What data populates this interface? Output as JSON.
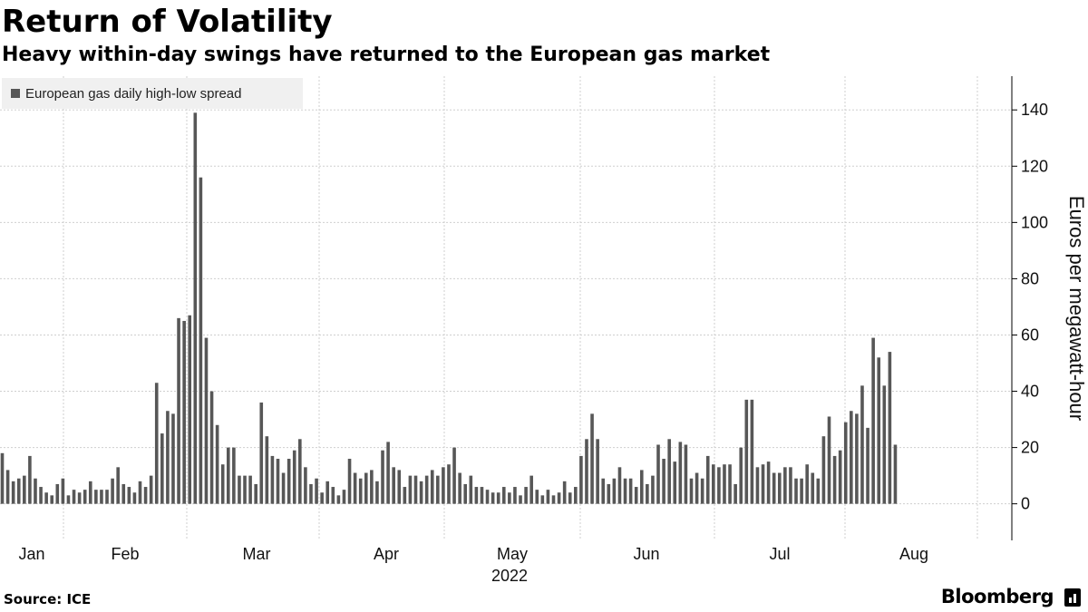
{
  "header": {
    "title": "Return of Volatility",
    "subtitle": "Heavy within-day swings have returned to the European gas market"
  },
  "footer": {
    "source": "Source: ICE",
    "brand": "Bloomberg"
  },
  "icons": {
    "brand_mark": "bloomberg-terminal-icon"
  },
  "colors": {
    "bar": "#575757",
    "grid": "#cfcfcf",
    "legend_bg": "#f0f0f0"
  },
  "chart_data": {
    "type": "bar",
    "legend": [
      "European gas daily high-low spread"
    ],
    "legend_position": "top-left",
    "ylabel": "Euros per megawatt-hour",
    "y_axis_side": "right",
    "ylim": [
      -13,
      152
    ],
    "yticks": [
      0,
      20,
      40,
      60,
      80,
      100,
      120,
      140
    ],
    "grid": true,
    "x_tick_labels": [
      "Jan",
      "Feb",
      "Mar",
      "Apr",
      "May",
      "Jun",
      "Jul",
      "Aug"
    ],
    "x_period_label": "2022",
    "series": [
      {
        "values": [
          18,
          12,
          8,
          9,
          10,
          17,
          9,
          6,
          4,
          3,
          7,
          9,
          3,
          5,
          4,
          5,
          8,
          5,
          5,
          5,
          9,
          13,
          7,
          6,
          4,
          8,
          6,
          10,
          43,
          25,
          33,
          32,
          66,
          65,
          67,
          139,
          116,
          59,
          40,
          28,
          14,
          20,
          20,
          10,
          10,
          10,
          7,
          36,
          24,
          17,
          16,
          11,
          16,
          19,
          23,
          13,
          7,
          9,
          4,
          8,
          6,
          3,
          5,
          16,
          11,
          9,
          11,
          12,
          8,
          19,
          22,
          13,
          12,
          6,
          10,
          10,
          8,
          10,
          12,
          10,
          13,
          14,
          20,
          11,
          7,
          10,
          6,
          6,
          5,
          4,
          4,
          6,
          4,
          6,
          3,
          6,
          10,
          5,
          3,
          5,
          3,
          4,
          8,
          4,
          6,
          17,
          23,
          32,
          23,
          9,
          7,
          9,
          13,
          9,
          9,
          6,
          12,
          7,
          10,
          21,
          16,
          23,
          15,
          22,
          21,
          9,
          11,
          9,
          17,
          14,
          13,
          14,
          14,
          7,
          20,
          37,
          37,
          13,
          14,
          15,
          11,
          11,
          13,
          13,
          9,
          9,
          14,
          11,
          9,
          24,
          31,
          17,
          19,
          29,
          33,
          32,
          42,
          27,
          59,
          52,
          42,
          54,
          21
        ]
      }
    ]
  }
}
